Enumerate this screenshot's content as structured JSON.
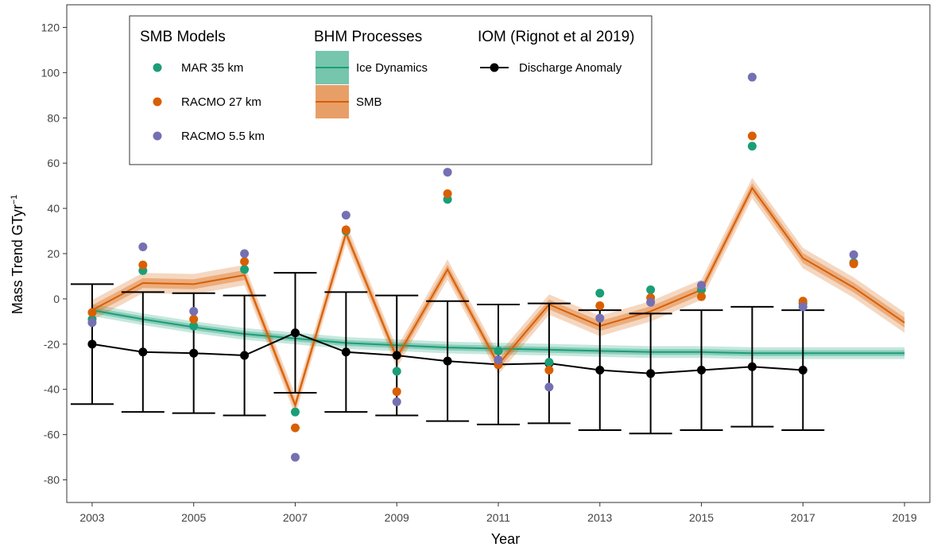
{
  "chart_data": {
    "type": "line",
    "title": "",
    "xlabel": "Year",
    "ylabel": "Mass Trend GTyr",
    "ylabel_superscript": "−1",
    "xlim": [
      2002.5,
      2019.5
    ],
    "ylim": [
      -90,
      130
    ],
    "x_ticks": [
      2003,
      2005,
      2007,
      2009,
      2011,
      2013,
      2015,
      2017,
      2019
    ],
    "y_ticks": [
      -80,
      -60,
      -40,
      -20,
      0,
      20,
      40,
      60,
      80,
      100,
      120
    ],
    "grid": false,
    "legend_position": "top-left",
    "colors": {
      "mar": "#1b9e77",
      "racmo27": "#d95f02",
      "racmo55": "#7570b3",
      "ice_dynamics": "#1b9e77",
      "smb": "#d95f02",
      "discharge": "#000000"
    },
    "legend": {
      "groups": [
        {
          "title": "SMB Models",
          "items": [
            "MAR 35 km",
            "RACMO 27 km",
            "RACMO 5.5 km"
          ]
        },
        {
          "title": "BHM Processes",
          "items": [
            "Ice Dynamics",
            "SMB"
          ]
        },
        {
          "title": "IOM (Rignot et al 2019)",
          "items": [
            "Discharge Anomaly"
          ]
        }
      ]
    },
    "smb_models": [
      {
        "name": "MAR 35 km",
        "x": [
          2003,
          2004,
          2005,
          2006,
          2007,
          2008,
          2009,
          2010,
          2011,
          2012,
          2013,
          2014,
          2015,
          2016,
          2017,
          2018
        ],
        "y": [
          -9,
          12.5,
          -12,
          13,
          -50,
          30,
          -32,
          44,
          -23,
          -28,
          2.5,
          4,
          4,
          67.5,
          -2,
          16
        ]
      },
      {
        "name": "RACMO 27 km",
        "x": [
          2003,
          2004,
          2005,
          2006,
          2007,
          2008,
          2009,
          2010,
          2011,
          2012,
          2013,
          2014,
          2015,
          2016,
          2017,
          2018
        ],
        "y": [
          -6,
          15,
          -9,
          16.5,
          -57,
          30.5,
          -41,
          46.5,
          -29,
          -31.5,
          -3,
          0.5,
          1,
          72,
          -1,
          15.5
        ]
      },
      {
        "name": "RACMO 5.5 km",
        "x": [
          2003,
          2004,
          2005,
          2006,
          2007,
          2008,
          2009,
          2010,
          2011,
          2012,
          2013,
          2014,
          2015,
          2016,
          2017,
          2018
        ],
        "y": [
          -10.5,
          23,
          -5.5,
          20,
          -70,
          37,
          -45.5,
          56,
          -27,
          -39,
          -8.5,
          -1.5,
          6,
          98,
          -3.5,
          19.5
        ]
      }
    ],
    "ice_dynamics": {
      "name": "Ice Dynamics",
      "x": [
        2003,
        2004,
        2005,
        2006,
        2007,
        2008,
        2009,
        2010,
        2011,
        2012,
        2013,
        2014,
        2015,
        2016,
        2017,
        2018,
        2019
      ],
      "y": [
        -5,
        -9,
        -12.5,
        -15.5,
        -17.5,
        -19.5,
        -20.5,
        -21.5,
        -22,
        -22.5,
        -23,
        -23.5,
        -23.5,
        -24,
        -24,
        -24,
        -24
      ],
      "inner_band": 1.3,
      "outer_band": 2.6
    },
    "smb": {
      "name": "SMB",
      "x": [
        2003,
        2004,
        2005,
        2006,
        2007,
        2008,
        2009,
        2010,
        2011,
        2012,
        2013,
        2014,
        2015,
        2016,
        2017,
        2018,
        2019
      ],
      "y": [
        -5,
        7,
        6.5,
        10.5,
        -47,
        29,
        -26,
        13,
        -29,
        -2.5,
        -12,
        -5.5,
        4,
        49,
        18,
        5,
        -10.5
      ],
      "inner_band": 2.2,
      "outer_band": 4.5
    },
    "discharge_anomaly": {
      "name": "Discharge Anomaly",
      "x": [
        2003,
        2004,
        2005,
        2006,
        2007,
        2008,
        2009,
        2010,
        2011,
        2012,
        2013,
        2014,
        2015,
        2016,
        2017
      ],
      "y": [
        -20,
        -23.5,
        -24,
        -25,
        -15,
        -23.5,
        -25,
        -27.5,
        -29,
        -28.5,
        -31.5,
        -33,
        -31.5,
        -30,
        -31.5
      ],
      "upper": [
        6.5,
        3,
        2.5,
        1.5,
        11.5,
        3,
        1.5,
        -1,
        -2.5,
        -2,
        -5,
        -6.5,
        -5,
        -3.5,
        -5
      ],
      "lower": [
        -46.5,
        -50,
        -50.5,
        -51.5,
        -41.5,
        -50,
        -51.5,
        -54,
        -55.5,
        -55,
        -58,
        -59.5,
        -58,
        -56.5,
        -58
      ]
    }
  }
}
